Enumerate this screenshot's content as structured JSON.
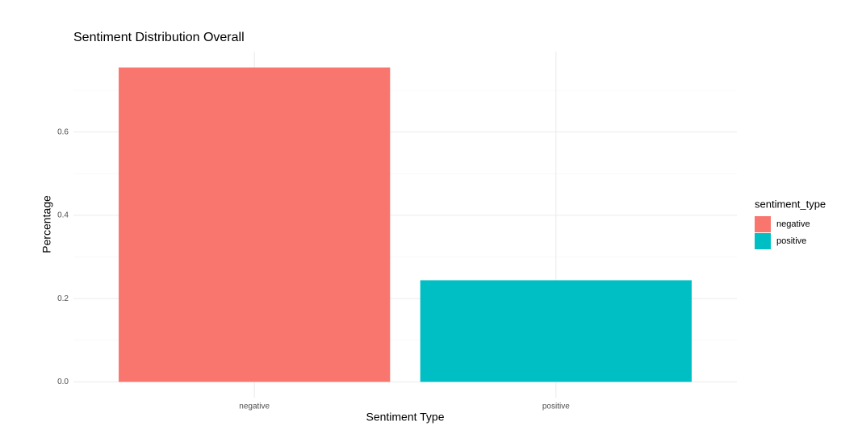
{
  "chart_data": {
    "type": "bar",
    "title": "Sentiment Distribution Overall",
    "x_label": "Sentiment Type",
    "y_label": "Percentage",
    "categories": [
      "negative",
      "positive"
    ],
    "values": [
      0.755,
      0.244
    ],
    "colors": [
      "#f8766d",
      "#00bfc4"
    ],
    "ylim": [
      -0.038,
      0.793
    ],
    "yticks": [
      {
        "value": 0,
        "label": "0.0"
      },
      0.2,
      0.4,
      0.6
    ],
    "grid": true,
    "legend_title": "sentiment_type",
    "legend_position": "right"
  }
}
